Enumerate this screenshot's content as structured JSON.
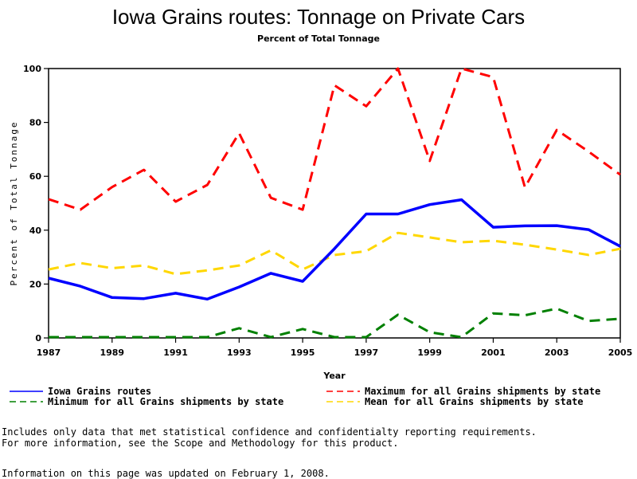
{
  "chart_data": {
    "type": "line",
    "title": "Iowa Grains routes: Tonnage on Private Cars",
    "subtitle": "Percent of Total Tonnage",
    "xlabel": "Year",
    "ylabel": "Percent of Total Tonnage",
    "xlim": [
      1987,
      2005
    ],
    "ylim": [
      0,
      100
    ],
    "grid": false,
    "x": [
      1987,
      1988,
      1989,
      1990,
      1991,
      1992,
      1993,
      1994,
      1995,
      1996,
      1997,
      1998,
      1999,
      2000,
      2001,
      2002,
      2003,
      2004,
      2005
    ],
    "x_ticks": [
      "1987",
      "1989",
      "1991",
      "1993",
      "1995",
      "1997",
      "1999",
      "2001",
      "2003",
      "2005"
    ],
    "y_ticks": [
      "0",
      "20",
      "40",
      "60",
      "80",
      "100"
    ],
    "legend_position": "bottom",
    "series": [
      {
        "name": "Iowa Grains routes",
        "color": "#0000ff",
        "style": "solid",
        "values": [
          22.2,
          19.2,
          15.0,
          14.6,
          16.6,
          14.4,
          18.9,
          24.0,
          21.0,
          33.1,
          46.0,
          46.0,
          49.5,
          51.3,
          41.1,
          41.6,
          41.7,
          40.2,
          34.0
        ]
      },
      {
        "name": "Maximum for all Grains shipments by state",
        "color": "#ff0000",
        "style": "dashed",
        "values": [
          51.5,
          47.6,
          56.0,
          62.4,
          50.6,
          56.8,
          76.0,
          52.0,
          47.6,
          93.8,
          86.0,
          100.0,
          65.7,
          100.0,
          96.8,
          55.9,
          77.2,
          69.2,
          60.6
        ]
      },
      {
        "name": "Minimum for all Grains shipments by state",
        "color": "#008000",
        "style": "dashed",
        "values": [
          0.3,
          0.3,
          0.3,
          0.3,
          0.3,
          0.3,
          3.6,
          0.3,
          3.3,
          0.3,
          0.3,
          8.6,
          2.1,
          0.3,
          9.1,
          8.4,
          10.9,
          6.3,
          7.1
        ]
      },
      {
        "name": "Mean for all Grains shipments by state",
        "color": "#ffd700",
        "style": "dashed",
        "values": [
          25.4,
          27.8,
          25.9,
          26.9,
          23.7,
          25.1,
          26.9,
          32.5,
          25.4,
          30.8,
          32.2,
          39.0,
          37.3,
          35.5,
          36.1,
          34.6,
          32.8,
          30.8,
          33.1
        ]
      }
    ]
  },
  "legend": {
    "items": [
      {
        "label": "Iowa Grains routes",
        "color": "#0000ff",
        "style": "solid"
      },
      {
        "label": "Maximum for all Grains shipments by state",
        "color": "#ff0000",
        "style": "dashed"
      },
      {
        "label": "Minimum for all Grains shipments by state",
        "color": "#008000",
        "style": "dashed"
      },
      {
        "label": "Mean for all Grains shipments by state",
        "color": "#ffd700",
        "style": "dashed"
      }
    ]
  },
  "footer": {
    "note_line1": "Includes only data that met statistical confidence and confidentialty reporting requirements.",
    "note_line2": "For more information, see the Scope and Methodology for this product.",
    "updated": "Information on this page was updated on February 1, 2008."
  }
}
